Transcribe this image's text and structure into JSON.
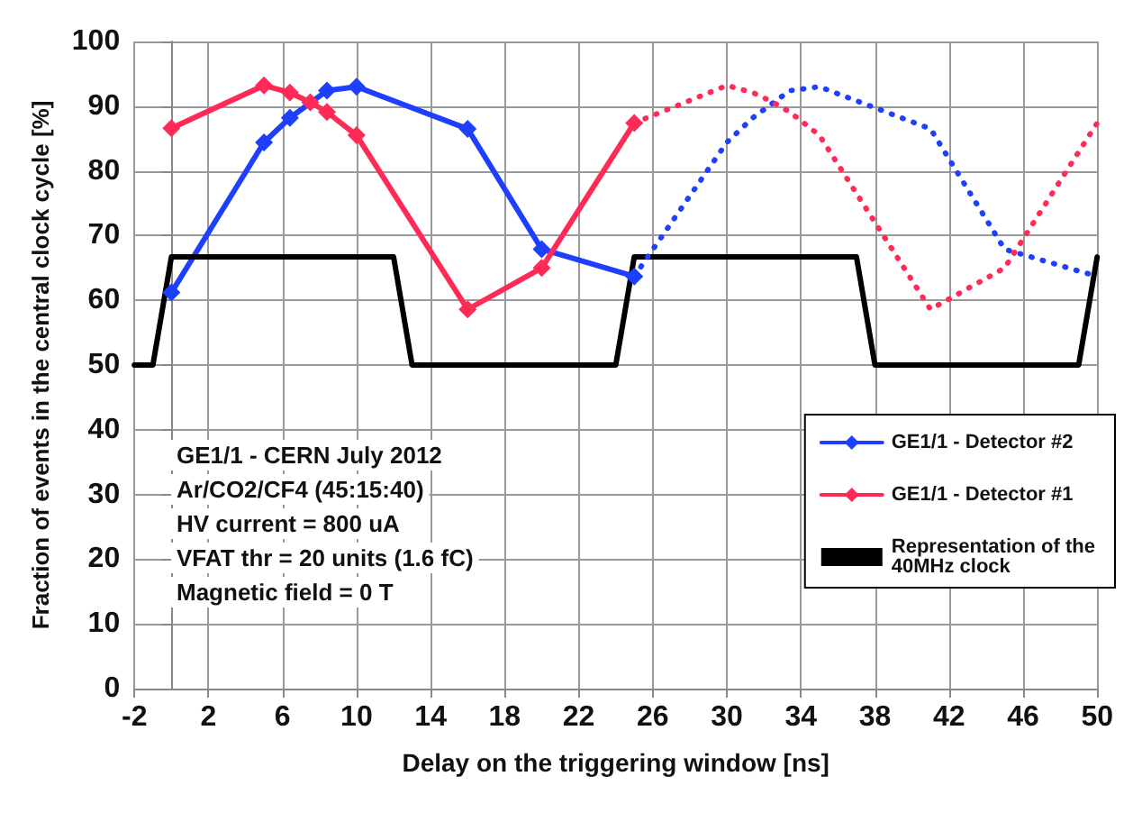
{
  "chart_data": {
    "type": "line",
    "xlabel": "Delay on the triggering window [ns]",
    "ylabel": "Fraction of events in the central clock cycle [%]",
    "xlim": [
      -2,
      50
    ],
    "xticks": [
      -2,
      2,
      6,
      10,
      14,
      18,
      22,
      26,
      30,
      34,
      38,
      42,
      46,
      50
    ],
    "ylim": [
      0,
      100
    ],
    "yticks": [
      0,
      10,
      20,
      30,
      40,
      50,
      60,
      70,
      80,
      90,
      100
    ],
    "grid": true,
    "legend": "right",
    "marker": "diamond",
    "line_style": "solid",
    "annotations": [
      "GE1/1 - CERN July 2012",
      "Ar/CO2/CF4 (45:15:40)",
      "HV current = 800 uA",
      "VFAT thr = 20 units (1.6 fC)",
      "Magnetic field = 0 T"
    ],
    "series": [
      {
        "name": "GE1/1 - Detector #2",
        "color": "#1f3fff",
        "x": [
          0,
          5,
          6.4,
          8.4,
          10,
          16,
          20,
          25
        ],
        "values": [
          61.2,
          84.4,
          88.2,
          92.4,
          93,
          86.5,
          67.9,
          63.7
        ]
      },
      {
        "name": "GE1/1 - Detector #1",
        "color": "#ff2a55",
        "x": [
          0,
          5,
          6.4,
          7.5,
          8.4,
          10,
          16,
          20,
          25
        ],
        "values": [
          86.6,
          93.2,
          92.1,
          90.6,
          89.1,
          85.5,
          58.6,
          65,
          87.4
        ]
      },
      {
        "name": "Representation of the 40MHz clock",
        "color": "#000000",
        "marker": "none",
        "x": [
          -2,
          -1,
          0,
          12,
          13,
          24,
          25,
          37,
          38,
          49,
          50
        ],
        "values": [
          50,
          50,
          66.7,
          66.7,
          50,
          50,
          66.7,
          66.7,
          50,
          50,
          66.7
        ]
      },
      {
        "color": "#1f3fff",
        "marker": "none",
        "line_style": "dotted",
        "x": [
          25,
          30,
          31.4,
          33.4,
          35,
          41,
          45,
          50
        ],
        "values": [
          63.7,
          84.4,
          88.2,
          92.4,
          93,
          86.5,
          67.9,
          63.7
        ]
      },
      {
        "color": "#ff2a55",
        "marker": "none",
        "line_style": "dotted",
        "x": [
          25,
          30,
          31.4,
          32.5,
          33.4,
          35,
          41,
          45,
          50
        ],
        "values": [
          87.4,
          93.2,
          92.1,
          90.6,
          89.1,
          85.5,
          58.6,
          65,
          87.4
        ]
      }
    ]
  }
}
